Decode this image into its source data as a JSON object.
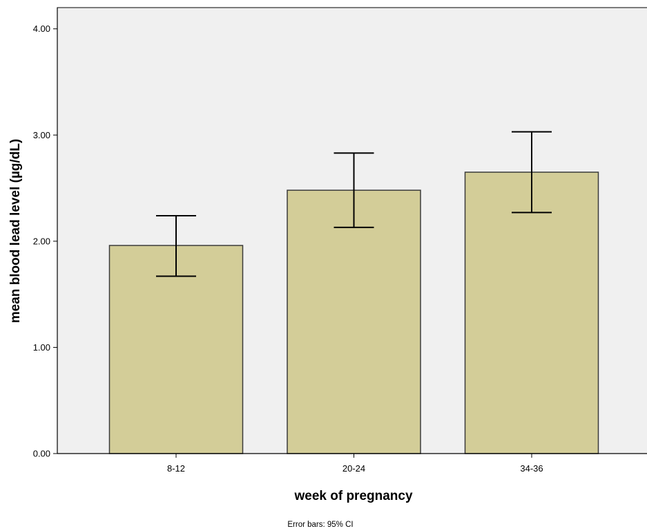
{
  "chart_data": {
    "type": "bar",
    "categories": [
      "8-12",
      "20-24",
      "34-36"
    ],
    "values": [
      1.96,
      2.48,
      2.65
    ],
    "error_bars": {
      "lower": [
        1.67,
        2.13,
        2.27
      ],
      "upper": [
        2.24,
        2.83,
        3.03
      ]
    },
    "xlabel": "week of pregnancy",
    "ylabel": "mean blood lead level (µg/dL)",
    "ylim": [
      0,
      4.2
    ],
    "yticks": [
      0,
      1,
      2,
      3,
      4
    ],
    "ytick_labels": [
      "0.00",
      "1.00",
      "2.00",
      "3.00",
      "4.00"
    ],
    "footnote": "Error bars: 95% CI",
    "grid": false,
    "legend": "none",
    "colors": {
      "bar_fill": "#d3cd98",
      "bar_stroke": "#3a3a3a",
      "plot_background": "#f0f0f0",
      "axis": "#000000",
      "error_bar": "#000000"
    }
  }
}
